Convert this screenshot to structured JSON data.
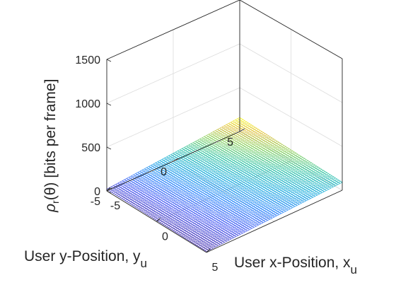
{
  "chart_data": {
    "type": "surface",
    "x_label": "User x-Position, x",
    "x_label_sub": "u",
    "y_label": "User y-Position, y",
    "y_label_sub": "u",
    "z_label": "[bits per frame]",
    "z_label_rho": "ρ",
    "z_label_sub": "r",
    "z_label_theta": "(θ)",
    "x_ticks": [
      "-5",
      "0",
      "5"
    ],
    "y_ticks": [
      "-5",
      "0",
      "5"
    ],
    "z_ticks": [
      "0",
      "500",
      "1000",
      "1500"
    ],
    "x_range": [
      -5,
      5
    ],
    "y_range": [
      -5,
      5
    ],
    "z_range": [
      0,
      1500
    ],
    "grid": true,
    "colormap": "parula",
    "surface": {
      "corner_z": {
        "x_min_y_min": 20,
        "x_max_y_min": 10,
        "x_min_y_max": 160,
        "x_max_y_max": 90
      },
      "z_color_range": [
        10,
        160
      ]
    }
  }
}
